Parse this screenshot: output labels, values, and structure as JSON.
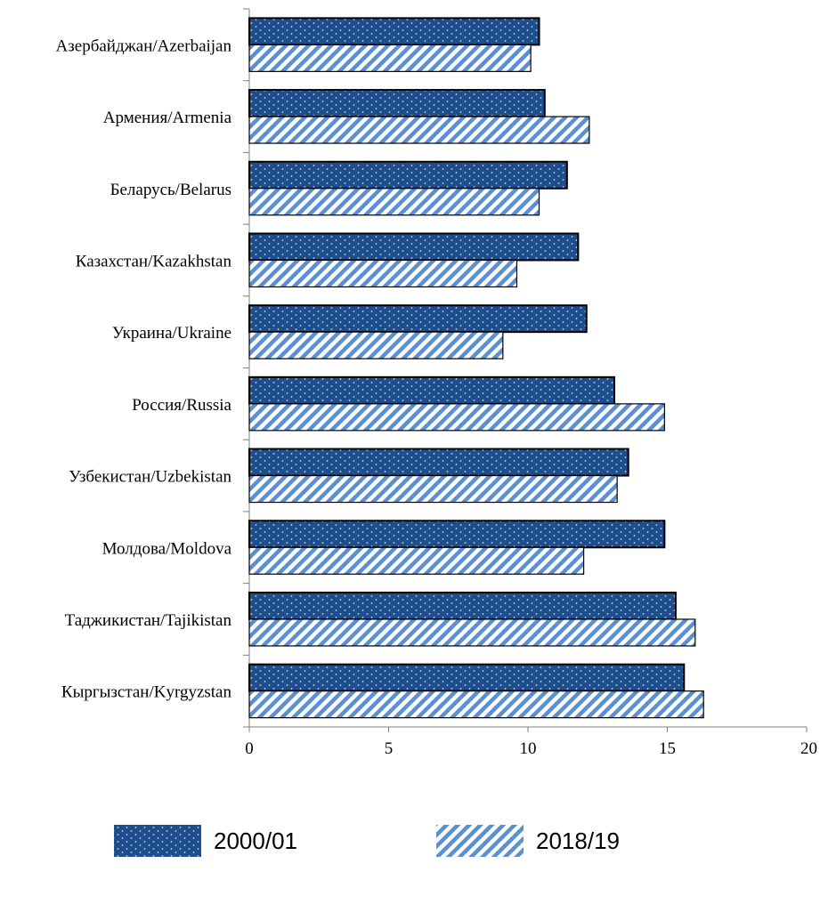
{
  "chart_data": {
    "type": "bar",
    "orientation": "horizontal",
    "categories": [
      "Азербайджан/Azerbaijan",
      "Армения/Armenia",
      "Беларусь/Belarus",
      "Казахстан/Kazakhstan",
      "Украина/Ukraine",
      "Россия/Russia",
      "Узбекистан/Uzbekistan",
      "Молдова/Moldova",
      "Таджикистан/Tajikistan",
      "Кыргызстан/Kyrgyzstan"
    ],
    "series": [
      {
        "name": "2000/01",
        "pattern": "dots",
        "color": "#1f4e8c",
        "values": [
          10.4,
          10.6,
          11.4,
          11.8,
          12.1,
          13.1,
          13.6,
          14.9,
          15.3,
          15.6
        ]
      },
      {
        "name": "2018/19",
        "pattern": "diagonal-stripes",
        "color": "#5b8fd4",
        "values": [
          10.1,
          12.2,
          10.4,
          9.6,
          9.1,
          14.9,
          13.2,
          12.0,
          16.0,
          16.3
        ]
      }
    ],
    "title": "",
    "xlabel": "",
    "ylabel": "",
    "xlim": [
      0,
      20
    ],
    "xticks": [
      0,
      5,
      10,
      15,
      20
    ],
    "grid": false,
    "legend_position": "bottom"
  }
}
